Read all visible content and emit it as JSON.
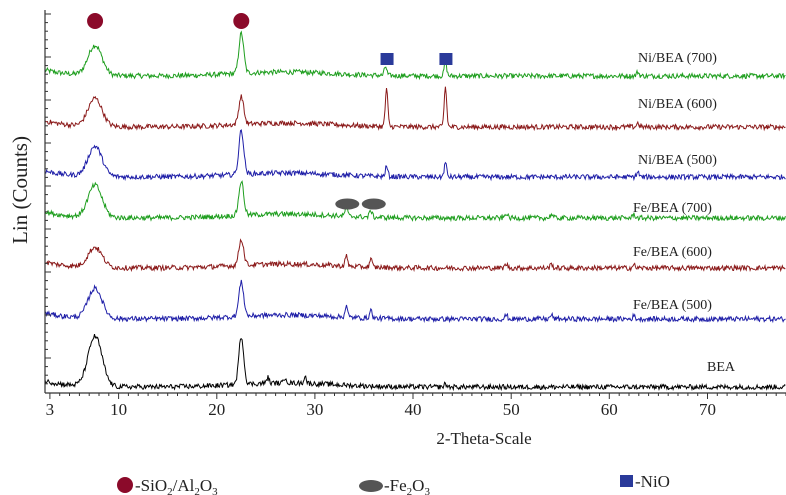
{
  "chart_data": {
    "type": "line",
    "xlabel": "2-Theta-Scale",
    "ylabel": "Lin (Counts)",
    "xlim": [
      2.5,
      78
    ],
    "x_ticks": [
      3,
      10,
      20,
      30,
      40,
      50,
      60,
      70
    ],
    "tick_labels": [
      "3",
      "10",
      "20",
      "30",
      "40",
      "50",
      "60",
      "70"
    ],
    "grid": false,
    "series": [
      {
        "name": "Ni/BEA (700)",
        "color": "#1e9e1e",
        "peaks": [
          [
            7.6,
            30
          ],
          [
            22.5,
            40
          ],
          [
            37.2,
            9
          ],
          [
            43.3,
            14
          ],
          [
            62.9,
            4
          ]
        ]
      },
      {
        "name": "Ni/BEA (600)",
        "color": "#8b1a1a",
        "peaks": [
          [
            7.6,
            28
          ],
          [
            22.5,
            28
          ],
          [
            37.3,
            38
          ],
          [
            43.3,
            40
          ],
          [
            62.9,
            4
          ]
        ]
      },
      {
        "name": "Ni/BEA (500)",
        "color": "#1f1fa8",
        "peaks": [
          [
            7.6,
            30
          ],
          [
            22.5,
            44
          ],
          [
            37.3,
            10
          ],
          [
            43.3,
            14
          ],
          [
            62.9,
            5
          ]
        ]
      },
      {
        "name": "Fe/BEA (700)",
        "color": "#1e9e1e",
        "peaks": [
          [
            7.6,
            32
          ],
          [
            22.5,
            34
          ],
          [
            33.2,
            9
          ],
          [
            35.7,
            7
          ],
          [
            49.5,
            5
          ],
          [
            54.1,
            4
          ],
          [
            62.5,
            4
          ]
        ]
      },
      {
        "name": "Fe/BEA (600)",
        "color": "#8b1a1a",
        "peaks": [
          [
            7.6,
            20
          ],
          [
            22.5,
            26
          ],
          [
            33.2,
            10
          ],
          [
            35.7,
            8
          ],
          [
            49.5,
            4
          ],
          [
            54.1,
            4
          ],
          [
            62.5,
            3
          ]
        ]
      },
      {
        "name": "Fe/BEA (500)",
        "color": "#1f1fa8",
        "peaks": [
          [
            7.6,
            30
          ],
          [
            22.5,
            34
          ],
          [
            33.2,
            11
          ],
          [
            35.7,
            8
          ],
          [
            49.5,
            4
          ],
          [
            54.1,
            4
          ],
          [
            62.5,
            3
          ]
        ]
      },
      {
        "name": "BEA",
        "color": "#000000",
        "peaks": [
          [
            7.6,
            50
          ],
          [
            22.5,
            48
          ],
          [
            25.2,
            6
          ],
          [
            27.0,
            6
          ],
          [
            29.0,
            7
          ],
          [
            43.3,
            3
          ]
        ]
      }
    ],
    "markers": [
      {
        "shape": "circle",
        "x": 7.6,
        "color": "#8b0a2a"
      },
      {
        "shape": "circle",
        "x": 22.5,
        "color": "#8b0a2a"
      },
      {
        "shape": "square",
        "x": 37.3,
        "color": "#2a3a9a"
      },
      {
        "shape": "square",
        "x": 43.3,
        "color": "#2a3a9a"
      },
      {
        "shape": "ellipse",
        "x": 33.3,
        "color": "#555555"
      },
      {
        "shape": "ellipse",
        "x": 36.0,
        "color": "#555555"
      }
    ],
    "legend": {
      "placement": "bottom",
      "items": [
        {
          "shape": "circle",
          "color": "#8b0a2a",
          "prefix": "-SiO",
          "sub1": "2",
          "mid": "/Al",
          "sub2": "2",
          "post": "O",
          "sub3": "3"
        },
        {
          "shape": "ellipse",
          "color": "#555555",
          "prefix": "-Fe",
          "sub1": "2",
          "post": "O",
          "sub3": "3"
        },
        {
          "shape": "square",
          "color": "#2a3a9a",
          "prefix": "-NiO"
        }
      ]
    }
  }
}
